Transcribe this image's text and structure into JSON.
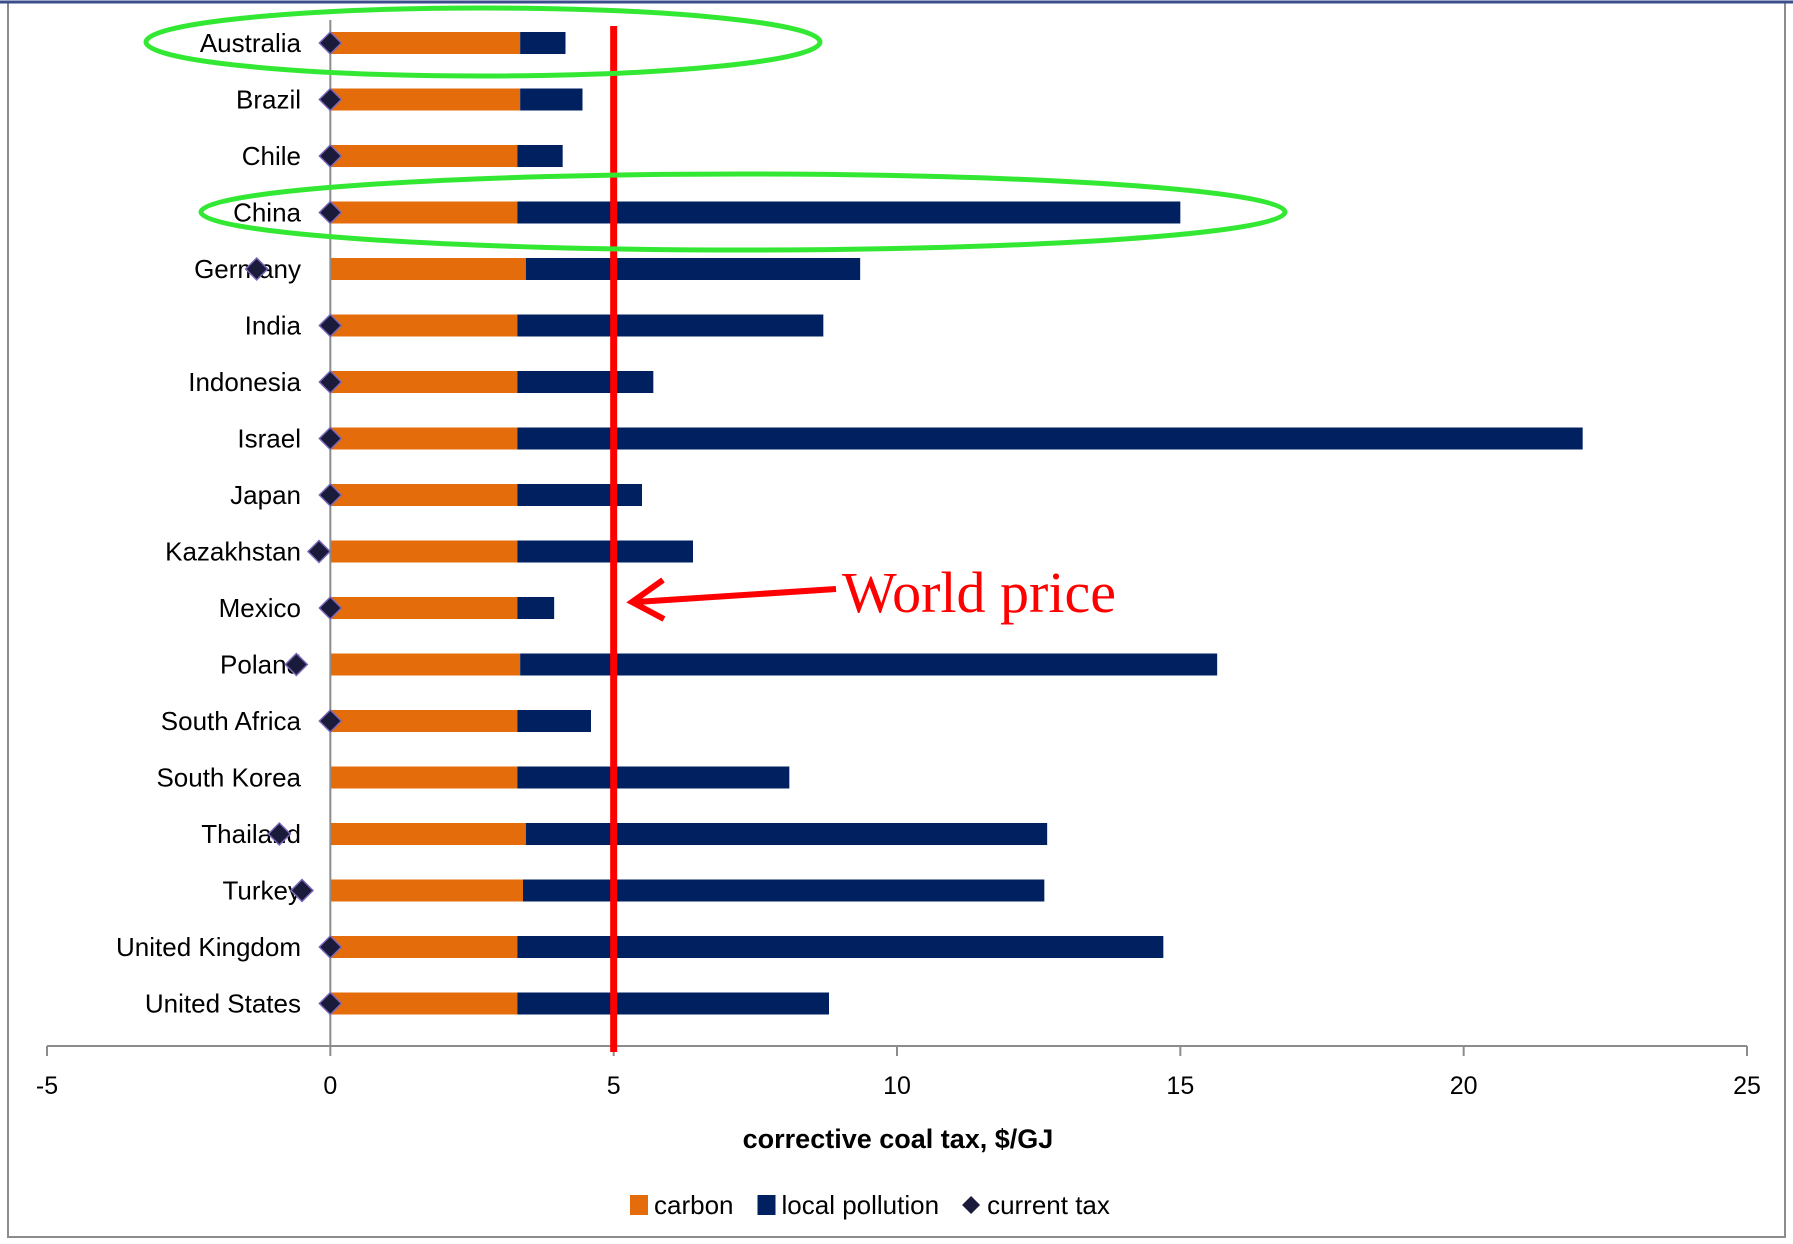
{
  "chart_data": {
    "type": "bar",
    "orientation": "horizontal",
    "stacked": true,
    "categories": [
      "Australia",
      "Brazil",
      "Chile",
      "China",
      "Germany",
      "India",
      "Indonesia",
      "Israel",
      "Japan",
      "Kazakhstan",
      "Mexico",
      "Poland",
      "South Africa",
      "South Korea",
      "Thailand",
      "Turkey",
      "United Kingdom",
      "United States"
    ],
    "series": [
      {
        "name": "carbon",
        "color": "#E46C0A",
        "values": [
          3.35,
          3.35,
          3.3,
          3.3,
          3.45,
          3.3,
          3.3,
          3.3,
          3.3,
          3.3,
          3.3,
          3.35,
          3.3,
          3.3,
          3.45,
          3.4,
          3.3,
          3.3
        ]
      },
      {
        "name": "local pollution",
        "color": "#002060",
        "values": [
          0.8,
          1.1,
          0.8,
          11.7,
          5.9,
          5.4,
          2.4,
          18.8,
          2.2,
          3.1,
          0.65,
          12.3,
          1.3,
          4.8,
          9.2,
          9.2,
          11.4,
          5.5
        ]
      }
    ],
    "markers": {
      "name": "current tax",
      "color": "#1a1a3a",
      "values": [
        0,
        0,
        0,
        0,
        -1.3,
        0,
        0,
        0,
        0,
        -0.2,
        0,
        -0.6,
        0,
        null,
        -0.9,
        -0.5,
        0,
        0
      ]
    },
    "reference_line": {
      "value": 5,
      "color": "#FF0000"
    },
    "annotation": {
      "text": "World price",
      "color": "#FF0000"
    },
    "highlights": {
      "categories": [
        "Australia",
        "China"
      ],
      "color": "#33E833"
    },
    "xlabel": "corrective coal tax, $/GJ",
    "xlim": [
      -5,
      25
    ],
    "xticks": [
      "-5",
      "0",
      "5",
      "10",
      "15",
      "20",
      "25"
    ],
    "grid": false,
    "legend_position": "bottom"
  }
}
